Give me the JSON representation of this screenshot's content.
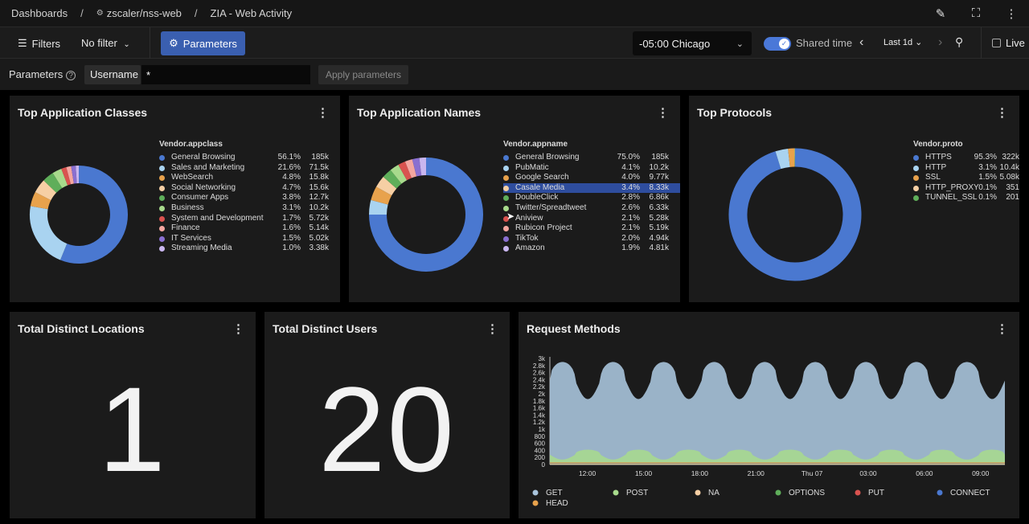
{
  "breadcrumb": {
    "root": "Dashboards",
    "folder": "zscaler/nss-web",
    "page": "ZIA - Web Activity"
  },
  "toolbar": {
    "edit_icon": "pencil-icon",
    "fullscreen_icon": "expand-icon",
    "more_icon": "kebab-icon"
  },
  "filterbar": {
    "filters_label": "Filters",
    "no_filter_label": "No filter",
    "parameters_label": "Parameters",
    "timezone": "-05:00 Chicago",
    "shared_time_label": "Shared time",
    "shared_time_on": true,
    "range_label": "Last 1d",
    "live_label": "Live"
  },
  "parameters": {
    "label": "Parameters",
    "username_label": "Username",
    "username_value": "*",
    "apply_label": "Apply parameters"
  },
  "panels": {
    "app_classes": {
      "title": "Top Application Classes",
      "legend_title": "Vendor.appclass",
      "items": [
        {
          "name": "General Browsing",
          "pct": "56.1%",
          "count": "185k",
          "color": "#4a78d0"
        },
        {
          "name": "Sales and Marketing",
          "pct": "21.6%",
          "count": "71.5k",
          "color": "#a9d3f0"
        },
        {
          "name": "WebSearch",
          "pct": "4.8%",
          "count": "15.8k",
          "color": "#e8a24c"
        },
        {
          "name": "Social Networking",
          "pct": "4.7%",
          "count": "15.6k",
          "color": "#f6cfa4"
        },
        {
          "name": "Consumer Apps",
          "pct": "3.8%",
          "count": "12.7k",
          "color": "#5fae5a"
        },
        {
          "name": "Business",
          "pct": "3.1%",
          "count": "10.2k",
          "color": "#a8da8c"
        },
        {
          "name": "System and Development",
          "pct": "1.7%",
          "count": "5.72k",
          "color": "#d9534f"
        },
        {
          "name": "Finance",
          "pct": "1.6%",
          "count": "5.14k",
          "color": "#f4a6a0"
        },
        {
          "name": "IT Services",
          "pct": "1.5%",
          "count": "5.02k",
          "color": "#8a6fd1"
        },
        {
          "name": "Streaming Media",
          "pct": "1.0%",
          "count": "3.38k",
          "color": "#c9b6ef"
        }
      ]
    },
    "app_names": {
      "title": "Top Application Names",
      "legend_title": "Vendor.appname",
      "highlighted_index": 3,
      "items": [
        {
          "name": "General Browsing",
          "pct": "75.0%",
          "count": "185k",
          "color": "#4a78d0"
        },
        {
          "name": "PubMatic",
          "pct": "4.1%",
          "count": "10.2k",
          "color": "#a9d3f0"
        },
        {
          "name": "Google Search",
          "pct": "4.0%",
          "count": "9.77k",
          "color": "#e8a24c"
        },
        {
          "name": "Casale Media",
          "pct": "3.4%",
          "count": "8.33k",
          "color": "#f6cfa4"
        },
        {
          "name": "DoubleClick",
          "pct": "2.8%",
          "count": "6.86k",
          "color": "#5fae5a"
        },
        {
          "name": "Twitter/Spreadtweet",
          "pct": "2.6%",
          "count": "6.33k",
          "color": "#a8da8c"
        },
        {
          "name": "Aniview",
          "pct": "2.1%",
          "count": "5.28k",
          "color": "#d9534f"
        },
        {
          "name": "Rubicon Project",
          "pct": "2.1%",
          "count": "5.19k",
          "color": "#f4a6a0"
        },
        {
          "name": "TikTok",
          "pct": "2.0%",
          "count": "4.94k",
          "color": "#8a6fd1"
        },
        {
          "name": "Amazon",
          "pct": "1.9%",
          "count": "4.81k",
          "color": "#c9b6ef"
        }
      ]
    },
    "protocols": {
      "title": "Top Protocols",
      "legend_title": "Vendor.proto",
      "items": [
        {
          "name": "HTTPS",
          "pct": "95.3%",
          "count": "322k",
          "color": "#4a78d0"
        },
        {
          "name": "HTTP",
          "pct": "3.1%",
          "count": "10.4k",
          "color": "#a9d3f0"
        },
        {
          "name": "SSL",
          "pct": "1.5%",
          "count": "5.08k",
          "color": "#e8a24c"
        },
        {
          "name": "HTTP_PROXY",
          "pct": "0.1%",
          "count": "351",
          "color": "#f6cfa4"
        },
        {
          "name": "TUNNEL_SSL",
          "pct": "0.1%",
          "count": "201",
          "color": "#5fae5a"
        }
      ]
    },
    "locations": {
      "title": "Total Distinct Locations",
      "value": "1"
    },
    "users": {
      "title": "Total Distinct Users",
      "value": "20"
    },
    "request_methods": {
      "title": "Request Methods"
    }
  },
  "chart_data": {
    "type": "area",
    "title": "Request Methods",
    "y_ticks": [
      "0",
      "200",
      "400",
      "600",
      "800",
      "1k",
      "1.2k",
      "1.4k",
      "1.6k",
      "1.8k",
      "2k",
      "2.2k",
      "2.4k",
      "2.6k",
      "2.8k",
      "3k"
    ],
    "ylim": [
      0,
      3000
    ],
    "x_ticks": [
      "12:00",
      "15:00",
      "18:00",
      "21:00",
      "Thu 07",
      "03:00",
      "06:00",
      "09:00"
    ],
    "x_range_hours": [
      10,
      34.3
    ],
    "x_tick_hours": [
      12,
      15,
      18,
      21,
      24,
      27,
      30,
      33
    ],
    "series": [
      {
        "name": "GET",
        "color": "#a9c4dc",
        "peak": 2900,
        "trough": 1850
      },
      {
        "name": "POST",
        "color": "#a8da8c",
        "peak": 420,
        "trough": 140
      },
      {
        "name": "NA",
        "color": "#f6cfa4",
        "peak": 20,
        "trough": 10
      },
      {
        "name": "OPTIONS",
        "color": "#5fae5a",
        "peak": 10,
        "trough": 5
      },
      {
        "name": "PUT",
        "color": "#d9534f",
        "peak": 5,
        "trough": 2
      },
      {
        "name": "CONNECT",
        "color": "#4a78d0",
        "peak": 5,
        "trough": 2
      },
      {
        "name": "HEAD",
        "color": "#e8a24c",
        "peak": 5,
        "trough": 2
      }
    ],
    "grid": false,
    "legend_position": "bottom"
  }
}
